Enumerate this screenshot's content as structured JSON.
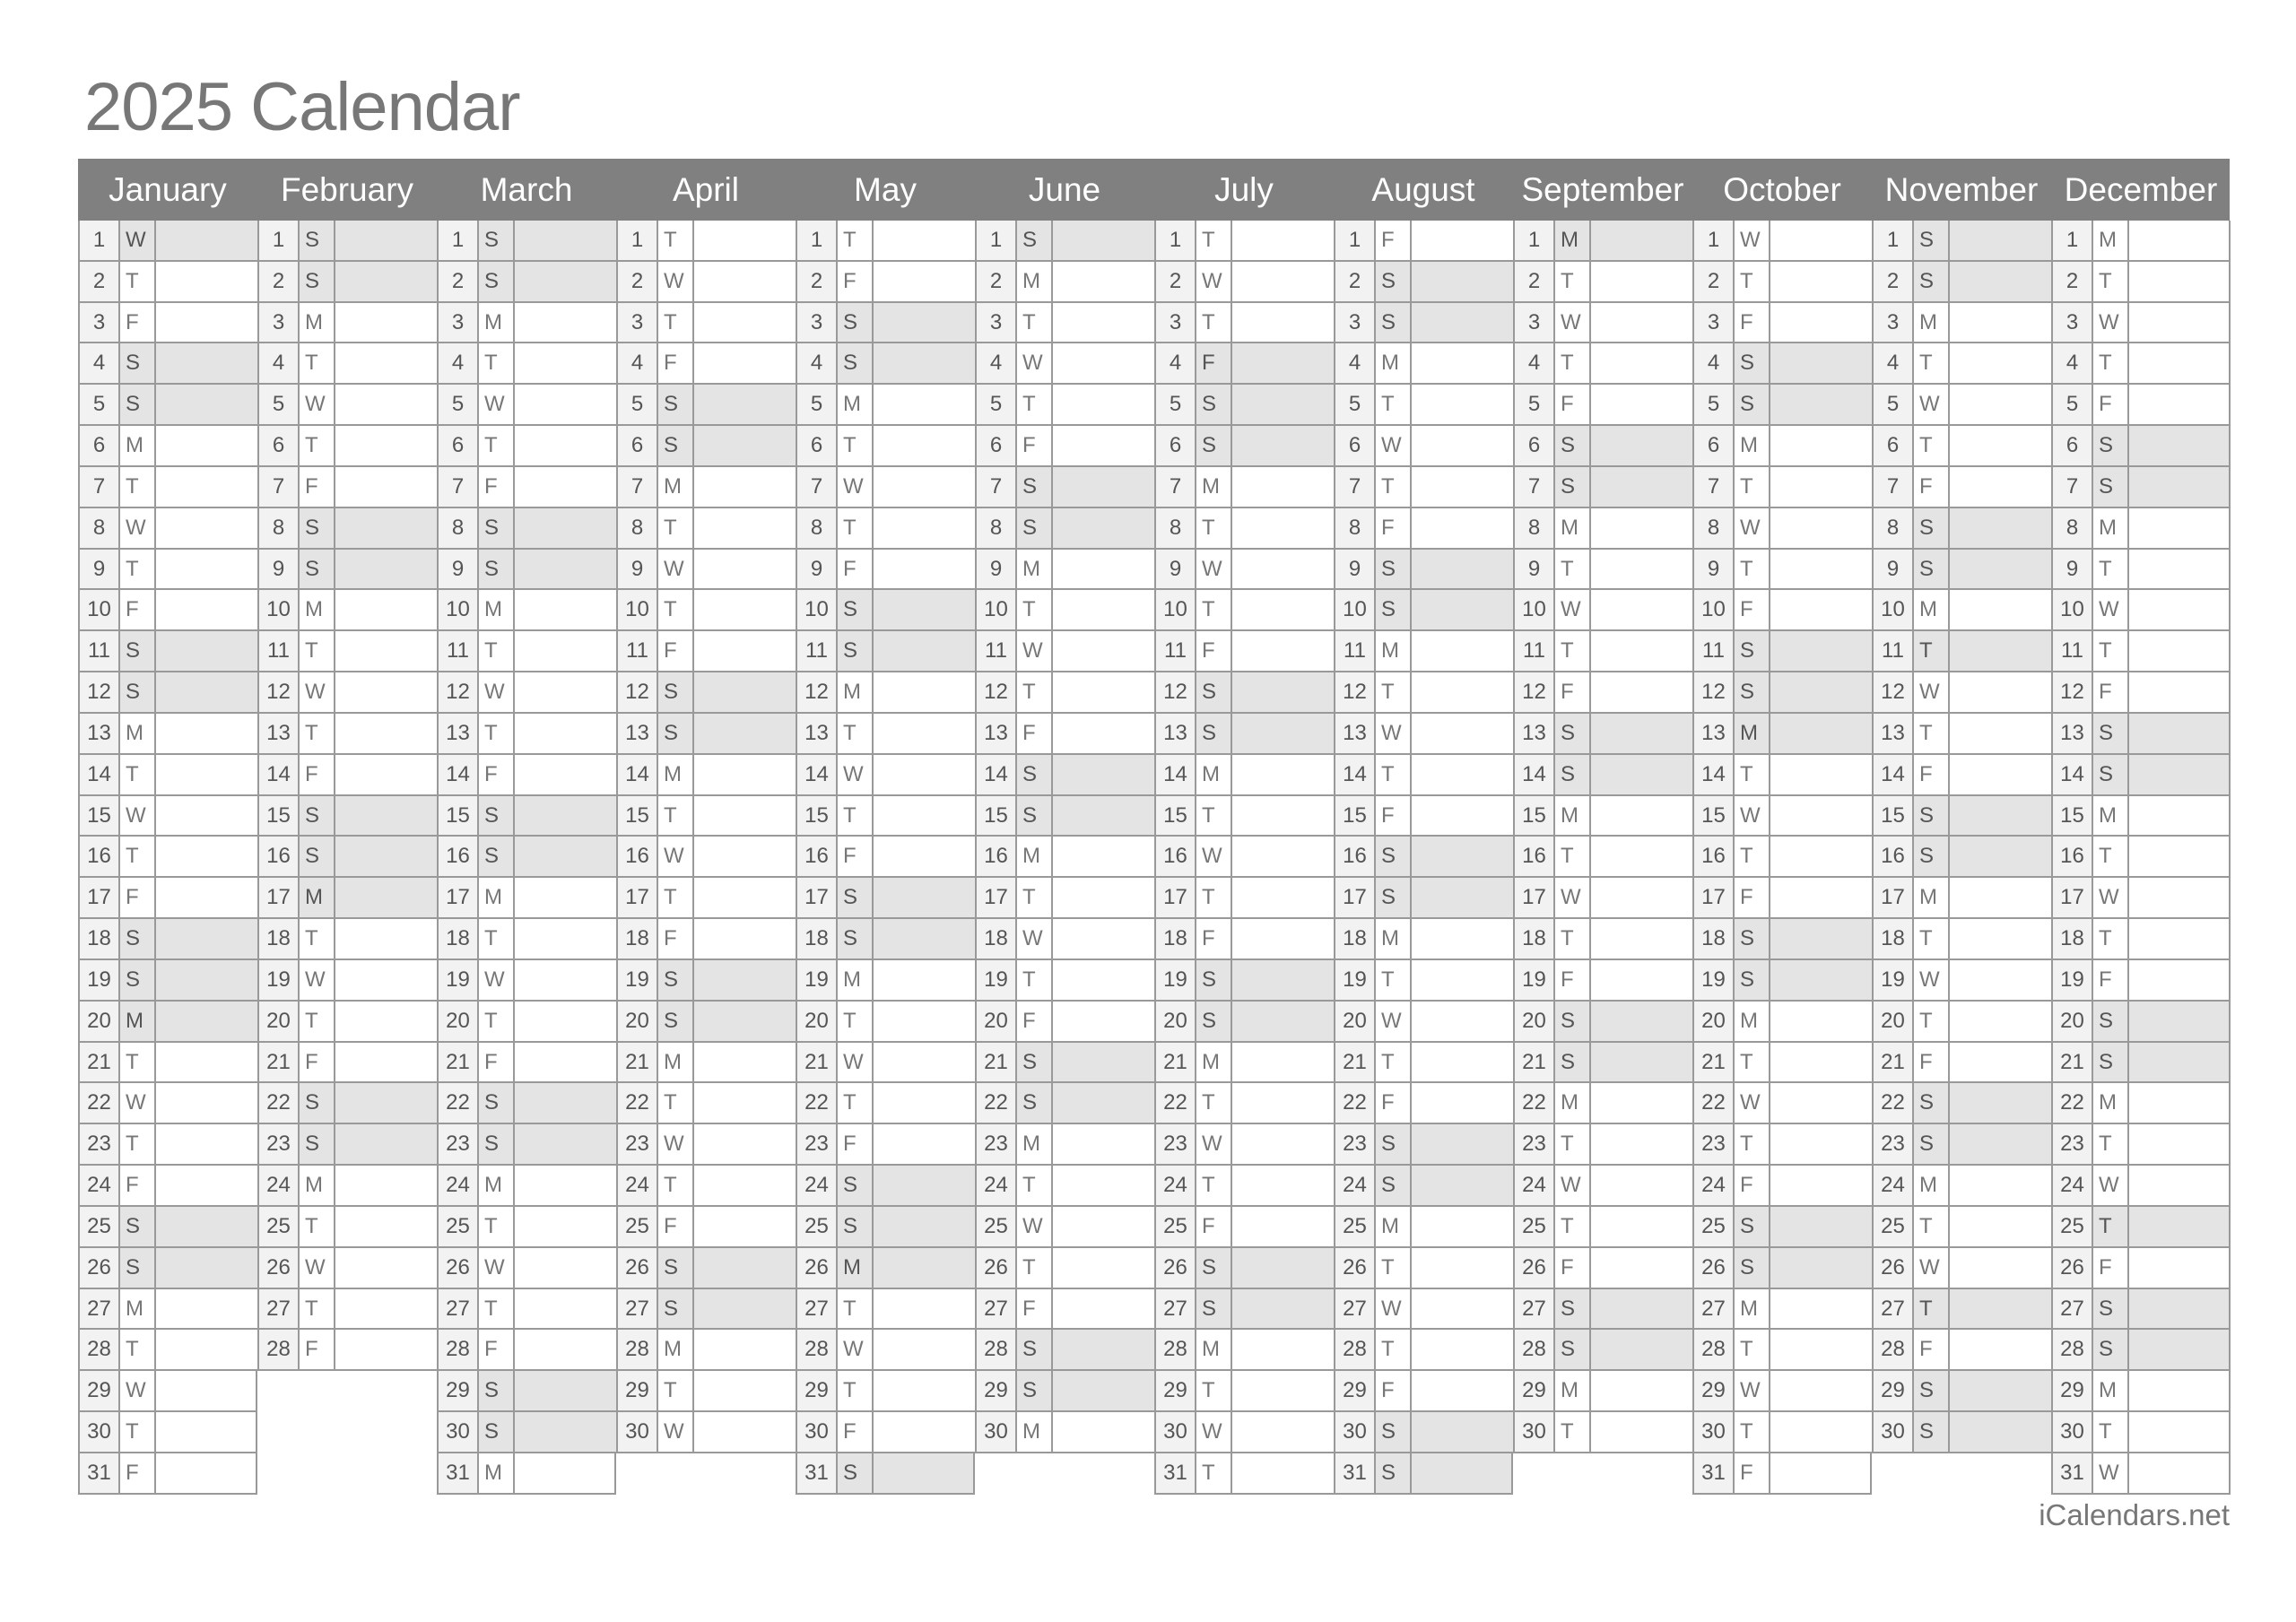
{
  "title": "2025 Calendar",
  "credit": "iCalendars.net",
  "colors": {
    "header": "#808080",
    "shaded": "#e4e4e4",
    "day_number_bg": "#f2f2f2",
    "border": "#999999"
  },
  "day_labels": [
    "1",
    "2",
    "3",
    "4",
    "5",
    "6",
    "7",
    "8",
    "9",
    "10",
    "11",
    "12",
    "13",
    "14",
    "15",
    "16",
    "17",
    "18",
    "19",
    "20",
    "21",
    "22",
    "23",
    "24",
    "25",
    "26",
    "27",
    "28",
    "29",
    "30",
    "31"
  ],
  "months": [
    {
      "name": "January",
      "weekdays": "WTFSSMTWTFSSMTWTFSSMTWTFSSMTWTF",
      "holidays": [
        1,
        20
      ]
    },
    {
      "name": "February",
      "weekdays": "SSMTWTFSSMTWTFSSMTWTFSSMTWTF",
      "holidays": [
        17
      ]
    },
    {
      "name": "March",
      "weekdays": "SSMTWTFSSMTWTFSSMTWTFSSMTWTFSSM",
      "holidays": []
    },
    {
      "name": "April",
      "weekdays": "TWTFSSMTWTFSSMTWTFSSMTWTFSSMTW",
      "holidays": []
    },
    {
      "name": "May",
      "weekdays": "TFSSMTWTFSSMTWTFSSMTWTFSSMTWTFS",
      "holidays": [
        26
      ]
    },
    {
      "name": "June",
      "weekdays": "SMTWTFSSMTWTFSSMTWTFSSMTWTFSSM",
      "holidays": []
    },
    {
      "name": "July",
      "weekdays": "TWTFSSMTWTFSSMTWTFSSMTWTFSSMTWT",
      "holidays": [
        4
      ]
    },
    {
      "name": "August",
      "weekdays": "FSSMTWTFSSMTWTFSSMTWTFSSMTWTFSS",
      "holidays": []
    },
    {
      "name": "September",
      "weekdays": "MTWTFSSMTWTFSSMTWTFSSMTWTFSSMT",
      "holidays": [
        1
      ]
    },
    {
      "name": "October",
      "weekdays": "WTFSSMTWTFSSMTWTFSSMTWTFSSMTWTF",
      "holidays": [
        13
      ]
    },
    {
      "name": "November",
      "weekdays": "SSMTWTFSSMTWTFSSMTWTFSSMTWTFSS",
      "holidays": [
        11,
        27
      ]
    },
    {
      "name": "December",
      "weekdays": "MTWTFSSMTWTFSSMTWTFSSMTWTFSSMTW",
      "holidays": [
        25
      ]
    }
  ]
}
